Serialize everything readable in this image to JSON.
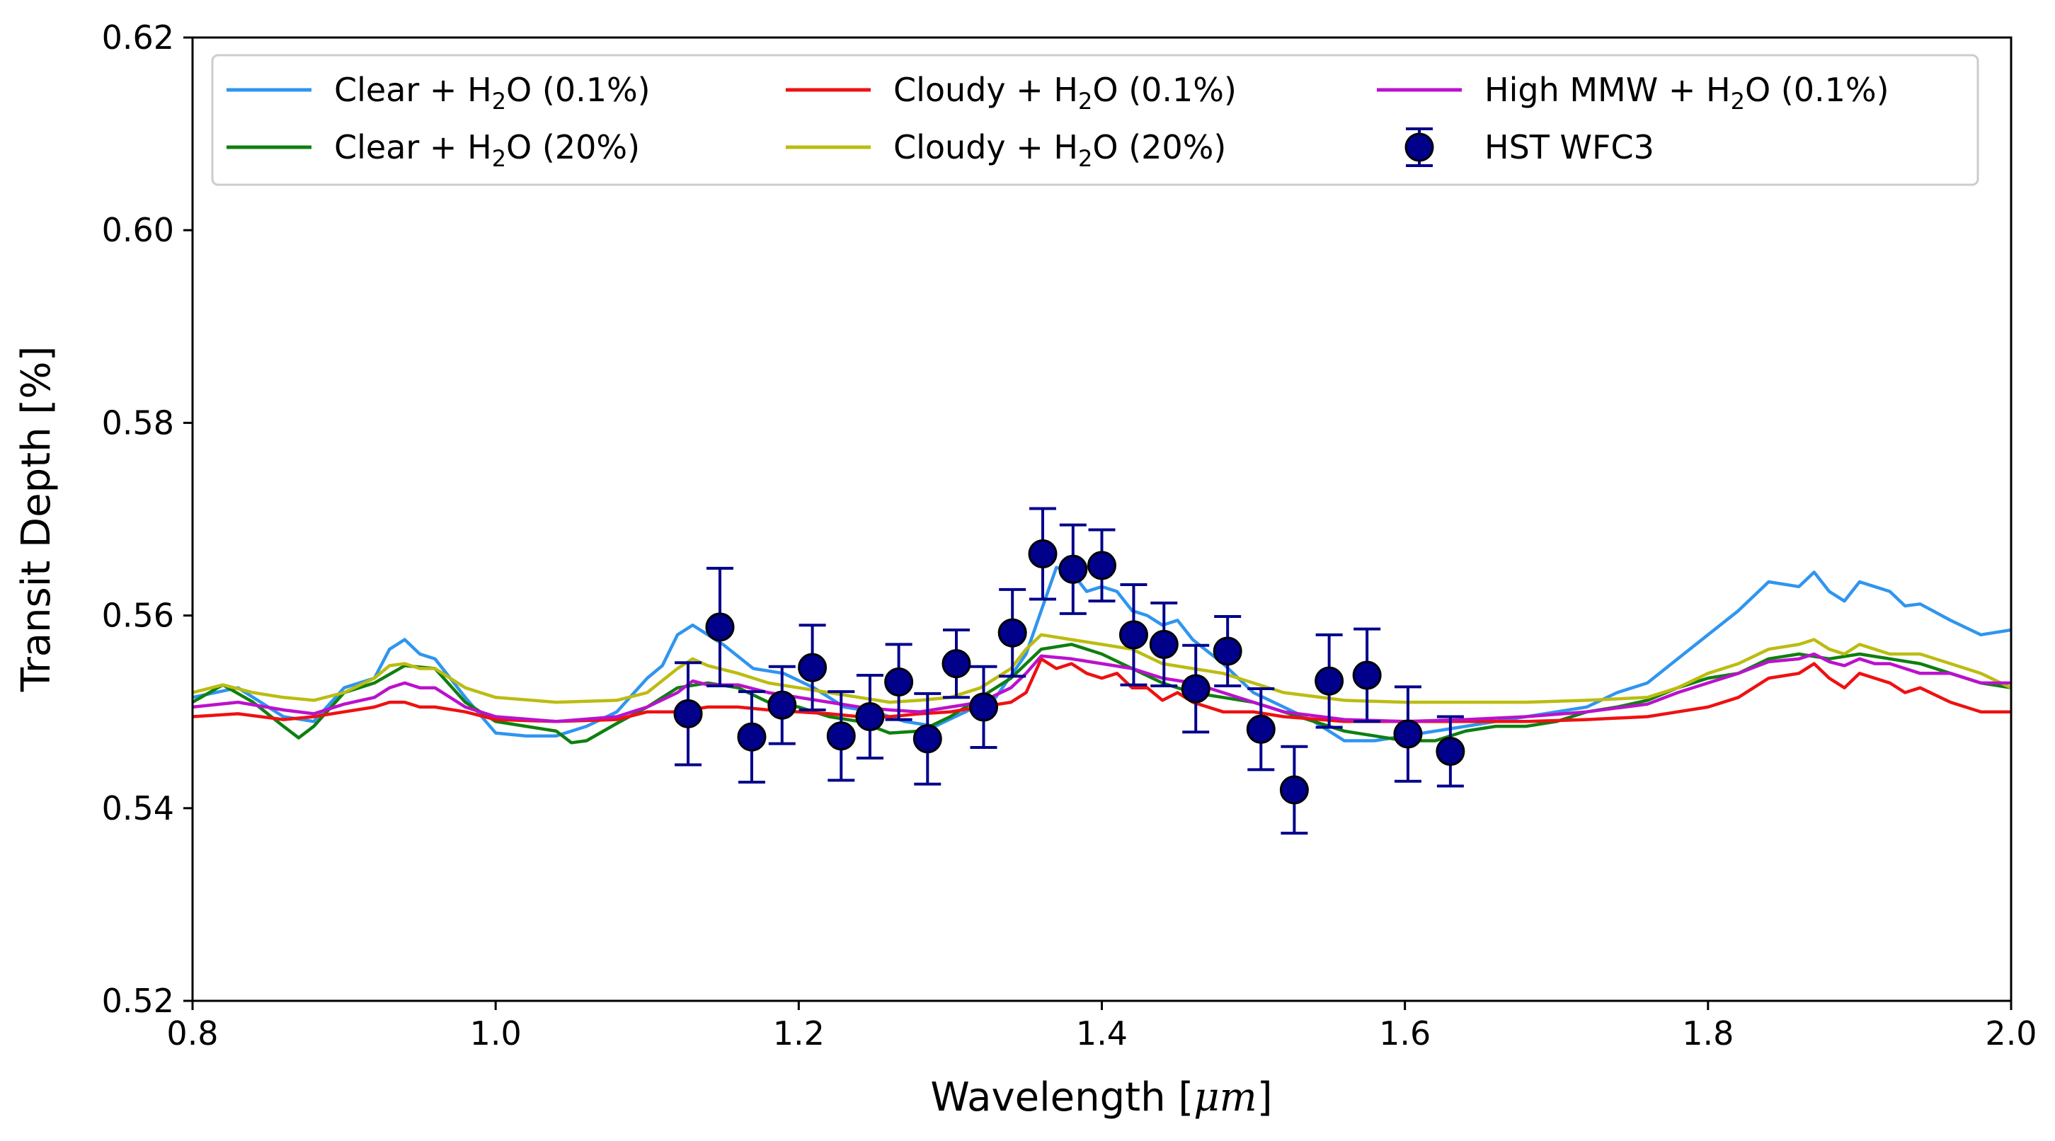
{
  "chart_data": {
    "type": "line",
    "title": "",
    "xlabel": "Wavelength [μm]",
    "ylabel": "Transit Depth [%]",
    "xlim": [
      0.8,
      2.0
    ],
    "ylim": [
      0.52,
      0.62
    ],
    "xticks": [
      0.8,
      1.0,
      1.2,
      1.4,
      1.6,
      1.8,
      2.0
    ],
    "xtick_labels": [
      "0.8",
      "1.0",
      "1.2",
      "1.4",
      "1.6",
      "1.8",
      "2.0"
    ],
    "yticks": [
      0.52,
      0.54,
      0.56,
      0.58,
      0.6,
      0.62
    ],
    "ytick_labels": [
      "0.52",
      "0.54",
      "0.56",
      "0.58",
      "0.60",
      "0.62"
    ],
    "grid": false,
    "legend_position": "top",
    "legend_columns": 3,
    "series": [
      {
        "name": "Clear + H2O (0.1%)",
        "label_text": "Clear + H",
        "label_sub": "2",
        "label_rest": "O (0.1%)",
        "color": "#2f95ef",
        "x": [
          0.8,
          0.83,
          0.86,
          0.88,
          0.9,
          0.92,
          0.93,
          0.94,
          0.95,
          0.96,
          0.98,
          1.0,
          1.02,
          1.04,
          1.06,
          1.08,
          1.1,
          1.11,
          1.12,
          1.13,
          1.15,
          1.17,
          1.19,
          1.21,
          1.23,
          1.25,
          1.27,
          1.29,
          1.31,
          1.33,
          1.35,
          1.36,
          1.37,
          1.38,
          1.39,
          1.4,
          1.41,
          1.42,
          1.43,
          1.44,
          1.45,
          1.46,
          1.48,
          1.5,
          1.52,
          1.54,
          1.56,
          1.58,
          1.6,
          1.62,
          1.64,
          1.66,
          1.68,
          1.7,
          1.72,
          1.74,
          1.76,
          1.78,
          1.8,
          1.82,
          1.84,
          1.86,
          1.87,
          1.88,
          1.89,
          1.9,
          1.91,
          1.92,
          1.93,
          1.94,
          1.96,
          1.98,
          2.0
        ],
        "values": [
          0.5515,
          0.5525,
          0.5495,
          0.549,
          0.5525,
          0.5535,
          0.5565,
          0.5575,
          0.556,
          0.5555,
          0.5515,
          0.5478,
          0.5475,
          0.5475,
          0.5485,
          0.55,
          0.5535,
          0.5548,
          0.558,
          0.559,
          0.557,
          0.5545,
          0.554,
          0.5525,
          0.5505,
          0.55,
          0.549,
          0.5485,
          0.55,
          0.5515,
          0.556,
          0.5605,
          0.565,
          0.5645,
          0.5625,
          0.563,
          0.5625,
          0.5605,
          0.56,
          0.559,
          0.5595,
          0.5575,
          0.555,
          0.552,
          0.5505,
          0.549,
          0.547,
          0.547,
          0.5475,
          0.548,
          0.5485,
          0.549,
          0.5495,
          0.55,
          0.5505,
          0.552,
          0.553,
          0.5555,
          0.558,
          0.5605,
          0.5635,
          0.563,
          0.5645,
          0.5625,
          0.5615,
          0.5635,
          0.563,
          0.5625,
          0.561,
          0.5612,
          0.5595,
          0.558,
          0.5585
        ]
      },
      {
        "name": "Clear + H2O (20%)",
        "label_text": "Clear + H",
        "label_sub": "2",
        "label_rest": "O (20%)",
        "color": "#0f7f0f",
        "x": [
          0.8,
          0.82,
          0.84,
          0.86,
          0.87,
          0.88,
          0.9,
          0.92,
          0.94,
          0.96,
          0.98,
          1.0,
          1.02,
          1.04,
          1.05,
          1.06,
          1.08,
          1.1,
          1.12,
          1.14,
          1.16,
          1.18,
          1.2,
          1.22,
          1.24,
          1.26,
          1.28,
          1.3,
          1.32,
          1.34,
          1.36,
          1.38,
          1.4,
          1.42,
          1.44,
          1.46,
          1.48,
          1.5,
          1.52,
          1.54,
          1.56,
          1.58,
          1.6,
          1.62,
          1.64,
          1.66,
          1.68,
          1.7,
          1.72,
          1.74,
          1.76,
          1.78,
          1.8,
          1.82,
          1.84,
          1.86,
          1.88,
          1.9,
          1.92,
          1.94,
          1.96,
          1.98,
          2.0
        ],
        "values": [
          0.551,
          0.5528,
          0.551,
          0.5485,
          0.5473,
          0.5485,
          0.552,
          0.553,
          0.5548,
          0.5545,
          0.551,
          0.549,
          0.5485,
          0.548,
          0.5468,
          0.547,
          0.5488,
          0.5505,
          0.5525,
          0.553,
          0.5525,
          0.551,
          0.5505,
          0.5495,
          0.549,
          0.5478,
          0.548,
          0.5495,
          0.5515,
          0.5535,
          0.5565,
          0.557,
          0.556,
          0.5545,
          0.553,
          0.552,
          0.5515,
          0.551,
          0.55,
          0.549,
          0.548,
          0.5475,
          0.547,
          0.547,
          0.548,
          0.5485,
          0.5485,
          0.549,
          0.55,
          0.5505,
          0.5512,
          0.5525,
          0.5535,
          0.554,
          0.5555,
          0.556,
          0.5555,
          0.556,
          0.5555,
          0.555,
          0.554,
          0.553,
          0.5525
        ]
      },
      {
        "name": "Cloudy + H2O (0.1%)",
        "label_text": "Cloudy + H",
        "label_sub": "2",
        "label_rest": "O (0.1%)",
        "color": "#ee1111",
        "x": [
          0.8,
          0.83,
          0.86,
          0.88,
          0.9,
          0.92,
          0.93,
          0.94,
          0.95,
          0.96,
          0.98,
          1.0,
          1.04,
          1.08,
          1.1,
          1.12,
          1.14,
          1.16,
          1.18,
          1.2,
          1.22,
          1.24,
          1.26,
          1.28,
          1.3,
          1.32,
          1.34,
          1.35,
          1.36,
          1.37,
          1.38,
          1.39,
          1.4,
          1.41,
          1.42,
          1.43,
          1.44,
          1.45,
          1.46,
          1.48,
          1.5,
          1.52,
          1.56,
          1.6,
          1.64,
          1.68,
          1.72,
          1.76,
          1.78,
          1.8,
          1.82,
          1.84,
          1.86,
          1.87,
          1.88,
          1.89,
          1.9,
          1.91,
          1.92,
          1.93,
          1.94,
          1.96,
          1.98,
          2.0
        ],
        "values": [
          0.5495,
          0.5498,
          0.5492,
          0.5495,
          0.55,
          0.5505,
          0.551,
          0.551,
          0.5505,
          0.5505,
          0.55,
          0.5492,
          0.549,
          0.5492,
          0.55,
          0.55,
          0.5505,
          0.5505,
          0.5502,
          0.55,
          0.5498,
          0.5495,
          0.5495,
          0.5498,
          0.55,
          0.5505,
          0.551,
          0.552,
          0.5555,
          0.5545,
          0.555,
          0.554,
          0.5535,
          0.554,
          0.5525,
          0.5525,
          0.5512,
          0.552,
          0.551,
          0.55,
          0.55,
          0.5495,
          0.549,
          0.549,
          0.549,
          0.549,
          0.5492,
          0.5495,
          0.55,
          0.5505,
          0.5515,
          0.5535,
          0.554,
          0.555,
          0.5535,
          0.5525,
          0.554,
          0.5535,
          0.553,
          0.552,
          0.5525,
          0.551,
          0.55,
          0.55
        ]
      },
      {
        "name": "Cloudy + H2O (20%)",
        "label_text": "Cloudy + H",
        "label_sub": "2",
        "label_rest": "O (20%)",
        "color": "#bcbc12",
        "x": [
          0.8,
          0.82,
          0.84,
          0.86,
          0.88,
          0.9,
          0.92,
          0.93,
          0.94,
          0.95,
          0.96,
          0.98,
          1.0,
          1.04,
          1.08,
          1.1,
          1.12,
          1.13,
          1.14,
          1.16,
          1.18,
          1.2,
          1.22,
          1.24,
          1.26,
          1.28,
          1.3,
          1.32,
          1.34,
          1.35,
          1.36,
          1.38,
          1.4,
          1.42,
          1.44,
          1.46,
          1.48,
          1.5,
          1.52,
          1.56,
          1.6,
          1.64,
          1.68,
          1.72,
          1.76,
          1.78,
          1.8,
          1.82,
          1.84,
          1.86,
          1.87,
          1.88,
          1.89,
          1.9,
          1.91,
          1.92,
          1.94,
          1.96,
          1.98,
          2.0
        ],
        "values": [
          0.552,
          0.5528,
          0.552,
          0.5515,
          0.5512,
          0.552,
          0.5535,
          0.5548,
          0.555,
          0.5545,
          0.5545,
          0.5525,
          0.5515,
          0.551,
          0.5512,
          0.552,
          0.5545,
          0.5555,
          0.5548,
          0.554,
          0.553,
          0.5525,
          0.552,
          0.5515,
          0.551,
          0.5512,
          0.5515,
          0.5525,
          0.5545,
          0.5565,
          0.558,
          0.5575,
          0.557,
          0.5565,
          0.555,
          0.5545,
          0.554,
          0.553,
          0.552,
          0.5512,
          0.551,
          0.551,
          0.551,
          0.5512,
          0.5515,
          0.5525,
          0.554,
          0.555,
          0.5565,
          0.557,
          0.5575,
          0.5565,
          0.556,
          0.557,
          0.5565,
          0.556,
          0.556,
          0.555,
          0.554,
          0.5525
        ]
      },
      {
        "name": "High MMW + H2O (0.1%)",
        "label_text": "High MMW + H",
        "label_sub": "2",
        "label_rest": "O (0.1%)",
        "color": "#bb11cc",
        "x": [
          0.8,
          0.83,
          0.86,
          0.88,
          0.9,
          0.92,
          0.93,
          0.94,
          0.95,
          0.96,
          0.98,
          1.0,
          1.04,
          1.08,
          1.1,
          1.12,
          1.13,
          1.14,
          1.16,
          1.18,
          1.2,
          1.22,
          1.24,
          1.26,
          1.28,
          1.3,
          1.32,
          1.34,
          1.35,
          1.36,
          1.38,
          1.4,
          1.42,
          1.44,
          1.46,
          1.48,
          1.5,
          1.52,
          1.56,
          1.6,
          1.64,
          1.68,
          1.72,
          1.76,
          1.78,
          1.8,
          1.82,
          1.84,
          1.86,
          1.87,
          1.88,
          1.89,
          1.9,
          1.91,
          1.92,
          1.94,
          1.96,
          1.98,
          2.0
        ],
        "values": [
          0.5505,
          0.551,
          0.5502,
          0.5498,
          0.5508,
          0.5515,
          0.5525,
          0.553,
          0.5525,
          0.5525,
          0.5505,
          0.5495,
          0.549,
          0.5495,
          0.5505,
          0.552,
          0.5532,
          0.5528,
          0.5528,
          0.552,
          0.5515,
          0.551,
          0.5505,
          0.5502,
          0.55,
          0.5505,
          0.551,
          0.5525,
          0.554,
          0.5558,
          0.5555,
          0.555,
          0.5545,
          0.5535,
          0.553,
          0.552,
          0.551,
          0.55,
          0.5492,
          0.549,
          0.5492,
          0.5495,
          0.55,
          0.5508,
          0.552,
          0.553,
          0.554,
          0.5552,
          0.5555,
          0.556,
          0.5552,
          0.5548,
          0.5555,
          0.555,
          0.555,
          0.554,
          0.554,
          0.553,
          0.553
        ]
      }
    ],
    "scatter": {
      "name": "HST WFC3",
      "label": "HST WFC3",
      "marker_color": "#00008b",
      "edge_color": "#000000",
      "x": [
        1.127,
        1.148,
        1.169,
        1.189,
        1.209,
        1.228,
        1.247,
        1.266,
        1.285,
        1.304,
        1.322,
        1.341,
        1.361,
        1.381,
        1.4,
        1.421,
        1.441,
        1.462,
        1.483,
        1.505,
        1.527,
        1.55,
        1.575,
        1.602,
        1.63
      ],
      "values": [
        0.5498,
        0.5588,
        0.5474,
        0.5507,
        0.5546,
        0.5475,
        0.5495,
        0.5531,
        0.5472,
        0.555,
        0.5505,
        0.5582,
        0.5664,
        0.5648,
        0.5652,
        0.558,
        0.557,
        0.5524,
        0.5563,
        0.5482,
        0.5419,
        0.5532,
        0.5538,
        0.5477,
        0.5459
      ],
      "errors": [
        0.0053,
        0.0061,
        0.0047,
        0.004,
        0.0044,
        0.0046,
        0.0043,
        0.0039,
        0.0047,
        0.0035,
        0.0042,
        0.0045,
        0.0047,
        0.0046,
        0.0037,
        0.0052,
        0.0043,
        0.0045,
        0.0036,
        0.0042,
        0.0045,
        0.0048,
        0.0048,
        0.0049,
        0.0036
      ]
    }
  }
}
